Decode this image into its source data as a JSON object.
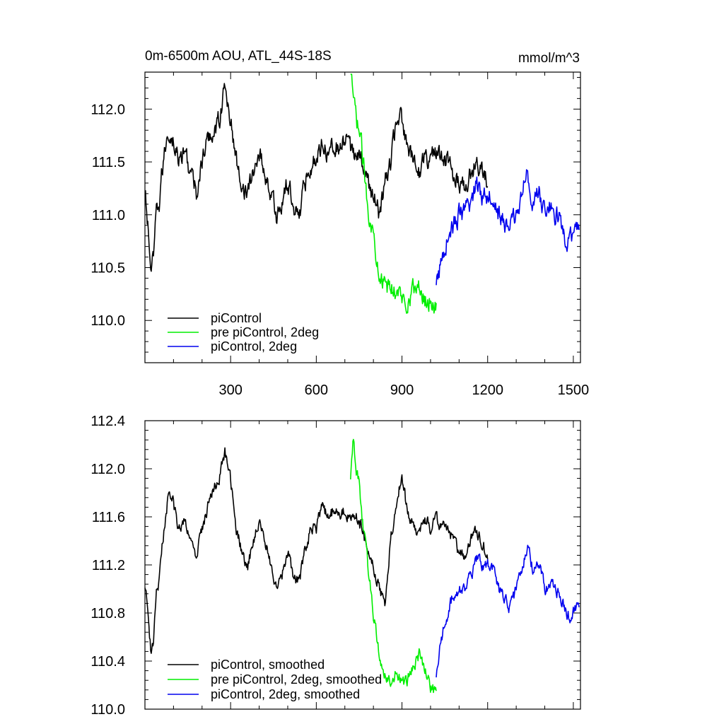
{
  "colors": {
    "piControl": "#000000",
    "pre_piControl_2deg": "#00ee00",
    "piControl_2deg": "#0000ee"
  },
  "chart_data": [
    {
      "type": "line",
      "title": "0m-6500m AOU, ATL_44S-18S",
      "units": "mmol/m^3",
      "xlim": [
        0,
        1525
      ],
      "ylim": [
        109.6,
        112.35
      ],
      "x_ticks": [
        300,
        600,
        900,
        1200,
        1500
      ],
      "x_tick_labels": [
        "300",
        "600",
        "900",
        "1200",
        "1500"
      ],
      "y_ticks": [
        110.0,
        110.5,
        111.0,
        111.5,
        112.0
      ],
      "y_tick_labels": [
        "110.0",
        "110.5",
        "111.0",
        "111.5",
        "112.0"
      ],
      "legend": [
        "piControl",
        "pre piControl, 2deg",
        "piControl, 2deg"
      ],
      "legend_placement": "bottom-left",
      "noise": 0.08,
      "series": [
        {
          "name": "piControl",
          "color": "#000000",
          "x": [
            0,
            10,
            20,
            30,
            40,
            50,
            60,
            70,
            80,
            90,
            100,
            120,
            140,
            160,
            180,
            200,
            220,
            240,
            260,
            280,
            300,
            320,
            340,
            360,
            380,
            400,
            420,
            440,
            460,
            480,
            500,
            520,
            540,
            560,
            580,
            600,
            620,
            640,
            660,
            680,
            700,
            720,
            740,
            760,
            780,
            800,
            820,
            840,
            860,
            880,
            900,
            920,
            940,
            960,
            980,
            1000,
            1020,
            1040,
            1060,
            1080,
            1100,
            1120,
            1140,
            1160,
            1180,
            1200
          ],
          "y": [
            111.2,
            110.9,
            110.5,
            110.55,
            111.0,
            111.1,
            111.4,
            111.6,
            111.8,
            111.75,
            111.7,
            111.5,
            111.6,
            111.4,
            111.2,
            111.5,
            111.7,
            111.8,
            111.9,
            112.2,
            111.9,
            111.5,
            111.3,
            111.2,
            111.4,
            111.6,
            111.4,
            111.2,
            111.0,
            111.1,
            111.3,
            111.1,
            111.0,
            111.3,
            111.5,
            111.5,
            111.7,
            111.6,
            111.7,
            111.6,
            111.7,
            111.6,
            111.6,
            111.5,
            111.3,
            111.2,
            111.0,
            111.3,
            111.5,
            111.9,
            111.9,
            111.6,
            111.5,
            111.4,
            111.6,
            111.5,
            111.6,
            111.5,
            111.5,
            111.4,
            111.3,
            111.3,
            111.4,
            111.5,
            111.4,
            111.3
          ]
        },
        {
          "name": "pre piControl, 2deg",
          "color": "#00ee00",
          "x": [
            720,
            730,
            740,
            750,
            760,
            780,
            800,
            820,
            840,
            860,
            880,
            900,
            920,
            940,
            960,
            980,
            1000,
            1020
          ],
          "y": [
            112.3,
            112.1,
            111.9,
            111.8,
            111.6,
            111.1,
            110.8,
            110.5,
            110.3,
            110.3,
            110.3,
            110.2,
            110.2,
            110.3,
            110.3,
            110.2,
            110.2,
            110.1
          ]
        },
        {
          "name": "piControl, 2deg",
          "color": "#0000ee",
          "x": [
            1020,
            1040,
            1060,
            1080,
            1100,
            1120,
            1140,
            1160,
            1180,
            1200,
            1220,
            1240,
            1260,
            1280,
            1300,
            1320,
            1340,
            1360,
            1380,
            1400,
            1420,
            1440,
            1460,
            1480,
            1500,
            1520
          ],
          "y": [
            110.3,
            110.6,
            110.8,
            110.9,
            111.0,
            111.0,
            111.1,
            111.3,
            111.2,
            111.2,
            111.2,
            111.0,
            110.9,
            110.9,
            111.0,
            111.2,
            111.4,
            111.1,
            111.2,
            111.0,
            111.1,
            111.0,
            110.9,
            110.7,
            110.8,
            110.9
          ]
        }
      ]
    },
    {
      "type": "line",
      "title": "",
      "units": "",
      "xlim": [
        0,
        1525
      ],
      "ylim": [
        110.0,
        112.4
      ],
      "x_ticks": [
        300,
        600,
        900,
        1200,
        1500
      ],
      "x_tick_labels": [],
      "y_ticks": [
        110.0,
        110.4,
        110.8,
        111.2,
        111.6,
        112.0,
        112.4
      ],
      "y_tick_labels": [
        "110.0",
        "110.4",
        "110.8",
        "111.2",
        "111.6",
        "112.0",
        "112.4"
      ],
      "legend": [
        "piControl, smoothed",
        "pre piControl, 2deg, smoothed",
        "piControl, 2deg, smoothed"
      ],
      "legend_placement": "bottom-left",
      "noise": 0.045,
      "series": [
        {
          "name": "piControl, smoothed",
          "color": "#000000",
          "x": [
            0,
            10,
            20,
            30,
            40,
            50,
            60,
            70,
            80,
            90,
            100,
            120,
            140,
            160,
            180,
            200,
            220,
            240,
            260,
            280,
            300,
            320,
            340,
            360,
            380,
            400,
            420,
            440,
            460,
            480,
            500,
            520,
            540,
            560,
            580,
            600,
            620,
            640,
            660,
            680,
            700,
            720,
            740,
            760,
            780,
            800,
            820,
            840,
            860,
            880,
            900,
            920,
            940,
            960,
            980,
            1000,
            1020,
            1040,
            1060,
            1080,
            1100,
            1120,
            1140,
            1160,
            1180,
            1200
          ],
          "y": [
            111.05,
            110.8,
            110.5,
            110.55,
            110.95,
            111.05,
            111.35,
            111.55,
            111.75,
            111.75,
            111.7,
            111.5,
            111.6,
            111.4,
            111.25,
            111.5,
            111.7,
            111.85,
            111.9,
            112.15,
            111.9,
            111.5,
            111.3,
            111.2,
            111.4,
            111.6,
            111.4,
            111.2,
            111.05,
            111.1,
            111.3,
            111.1,
            111.05,
            111.3,
            111.5,
            111.5,
            111.7,
            111.6,
            111.65,
            111.6,
            111.65,
            111.6,
            111.6,
            111.5,
            111.3,
            111.2,
            111.0,
            110.9,
            111.4,
            111.7,
            111.95,
            111.6,
            111.55,
            111.45,
            111.6,
            111.5,
            111.6,
            111.5,
            111.5,
            111.4,
            111.3,
            111.3,
            111.4,
            111.5,
            111.4,
            111.25
          ]
        },
        {
          "name": "pre piControl, 2deg, smoothed",
          "color": "#00ee00",
          "x": [
            720,
            730,
            740,
            750,
            760,
            780,
            800,
            820,
            840,
            860,
            880,
            900,
            920,
            940,
            960,
            980,
            1000,
            1020
          ],
          "y": [
            111.95,
            112.25,
            112.0,
            111.9,
            111.6,
            111.2,
            110.8,
            110.45,
            110.3,
            110.25,
            110.3,
            110.2,
            110.25,
            110.35,
            110.45,
            110.35,
            110.2,
            110.1
          ]
        },
        {
          "name": "piControl, 2deg, smoothed",
          "color": "#0000ee",
          "x": [
            1020,
            1040,
            1060,
            1080,
            1100,
            1120,
            1140,
            1160,
            1180,
            1200,
            1220,
            1240,
            1260,
            1280,
            1300,
            1320,
            1340,
            1360,
            1380,
            1400,
            1420,
            1440,
            1460,
            1480,
            1500,
            1520
          ],
          "y": [
            110.3,
            110.6,
            110.8,
            110.95,
            111.0,
            111.0,
            111.1,
            111.25,
            111.2,
            111.2,
            111.15,
            111.0,
            110.9,
            110.85,
            111.0,
            111.2,
            111.35,
            111.15,
            111.2,
            111.0,
            111.05,
            111.0,
            110.9,
            110.75,
            110.8,
            110.85
          ]
        }
      ]
    }
  ]
}
